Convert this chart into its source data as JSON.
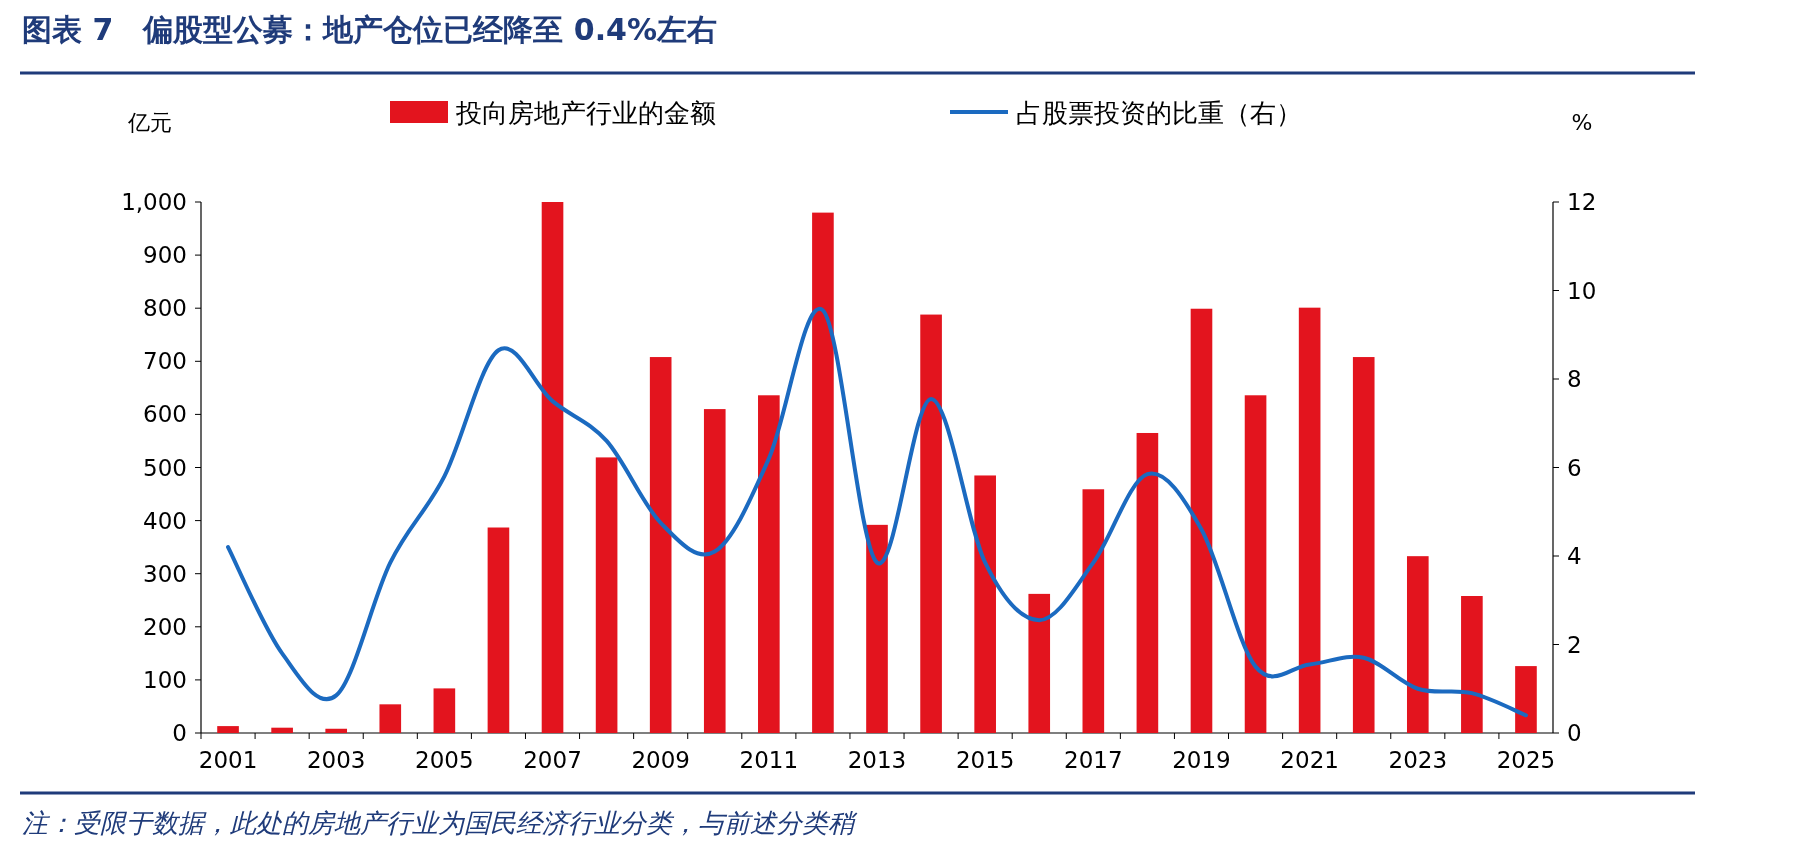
{
  "chart_data": {
    "type": "bar",
    "title": "图表 7　偏股型公募：地产仓位已经降至 0.4%左右",
    "annotations": [
      "注：受限于数据，此处的房地产行业为国民经济行业分类，与前述分类稍"
    ],
    "ylabel": "亿元",
    "y2label": "%",
    "categories": [
      "2001",
      null,
      "2003",
      null,
      "2005",
      null,
      "2007",
      null,
      "2009",
      null,
      "2011",
      null,
      "2013",
      null,
      "2015",
      null,
      "2017",
      null,
      "2019",
      null,
      "2021",
      null,
      "2023",
      null,
      "2025"
    ],
    "series": [
      {
        "name": "投向房地产行业的金额",
        "color": "#e3141e",
        "values": [
          13,
          10,
          8,
          54,
          84,
          387,
          1000,
          519,
          708,
          610,
          636,
          980,
          392,
          788,
          485,
          262,
          459,
          565,
          799,
          636,
          801,
          708,
          333,
          258,
          126
        ]
      },
      {
        "name": "占股票投资的比重（右）",
        "type": "line",
        "axis": "y2",
        "color": "#1b6ac0",
        "values": [
          4.2,
          1.8,
          0.85,
          3.85,
          5.8,
          8.65,
          7.5,
          6.6,
          4.75,
          4.1,
          6.2,
          9.55,
          3.85,
          7.55,
          3.85,
          2.55,
          3.85,
          5.85,
          4.6,
          1.5,
          1.55,
          1.7,
          1.0,
          0.9,
          0.4
        ]
      }
    ],
    "ylim": [
      0,
      1000
    ],
    "yticks": [
      0,
      100,
      200,
      300,
      400,
      500,
      600,
      700,
      800,
      900,
      {
        "value": 1000,
        "label": "1,000"
      }
    ],
    "y2lim": [
      0,
      12
    ],
    "y2ticks": [
      0,
      2,
      4,
      6,
      8,
      10,
      12
    ],
    "grid": false,
    "legend": "top",
    "marker": "none",
    "line_style": "solid"
  }
}
